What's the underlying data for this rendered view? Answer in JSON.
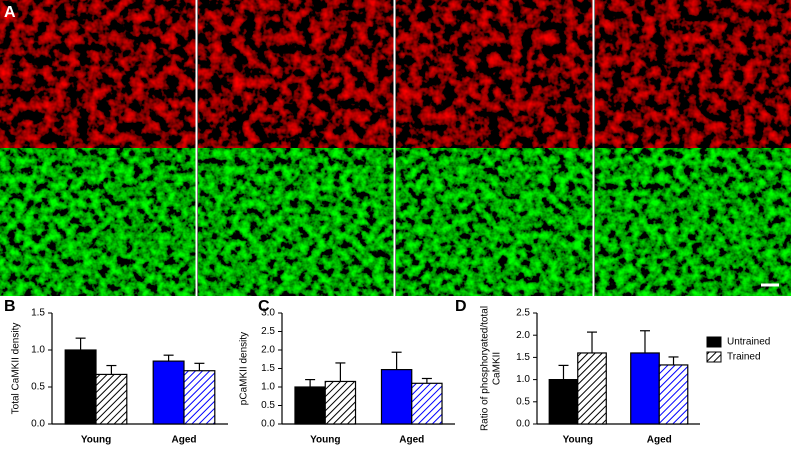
{
  "panel_labels": [
    "A",
    "B",
    "C",
    "D"
  ],
  "legend": [
    {
      "name": "Untrained",
      "hatch": false
    },
    {
      "name": "Trained",
      "hatch": true
    }
  ],
  "chart_data": [
    {
      "type": "bar",
      "ylabel": [
        "Total CaMKII density"
      ],
      "categories": [
        "Young",
        "Aged"
      ],
      "category_colors": [
        "#000000",
        "#0000ff"
      ],
      "series": [
        {
          "hatch": false,
          "values": [
            1.0,
            0.85
          ],
          "errors": [
            0.16,
            0.08
          ]
        },
        {
          "hatch": true,
          "values": [
            0.67,
            0.72
          ],
          "errors": [
            0.12,
            0.1
          ]
        }
      ],
      "ylim": [
        0,
        1.5
      ],
      "yticks": [
        {
          "value": 0,
          "label": "0.0"
        },
        0.5,
        {
          "value": 1,
          "label": "1.0"
        },
        1.5
      ]
    },
    {
      "type": "bar",
      "ylabel": [
        "pCaMKII density"
      ],
      "categories": [
        "Young",
        "Aged"
      ],
      "category_colors": [
        "#000000",
        "#0000ff"
      ],
      "series": [
        {
          "hatch": false,
          "values": [
            1.0,
            1.47
          ],
          "errors": [
            0.2,
            0.47
          ]
        },
        {
          "hatch": true,
          "values": [
            1.15,
            1.1
          ],
          "errors": [
            0.5,
            0.13
          ]
        }
      ],
      "ylim": [
        0,
        3
      ],
      "yticks": [
        {
          "value": 0,
          "label": "0.0"
        },
        0.5,
        {
          "value": 1,
          "label": "1.0"
        },
        1.5,
        {
          "value": 2,
          "label": "2.0"
        },
        2.5,
        {
          "value": 3,
          "label": "3.0"
        }
      ]
    },
    {
      "type": "bar",
      "ylabel": [
        "Ratio of phosphoryated/total",
        "CaMKII"
      ],
      "categories": [
        "Young",
        "Aged"
      ],
      "category_colors": [
        "#000000",
        "#0000ff"
      ],
      "series": [
        {
          "hatch": false,
          "values": [
            1.0,
            1.6
          ],
          "errors": [
            0.32,
            0.5
          ]
        },
        {
          "hatch": true,
          "values": [
            1.6,
            1.33
          ],
          "errors": [
            0.47,
            0.18
          ]
        }
      ],
      "ylim": [
        0,
        2.5
      ],
      "yticks": [
        {
          "value": 0,
          "label": "0.0"
        },
        0.5,
        {
          "value": 1,
          "label": "1.0"
        },
        1.5,
        {
          "value": 2,
          "label": "2.0"
        },
        2.5
      ]
    }
  ]
}
